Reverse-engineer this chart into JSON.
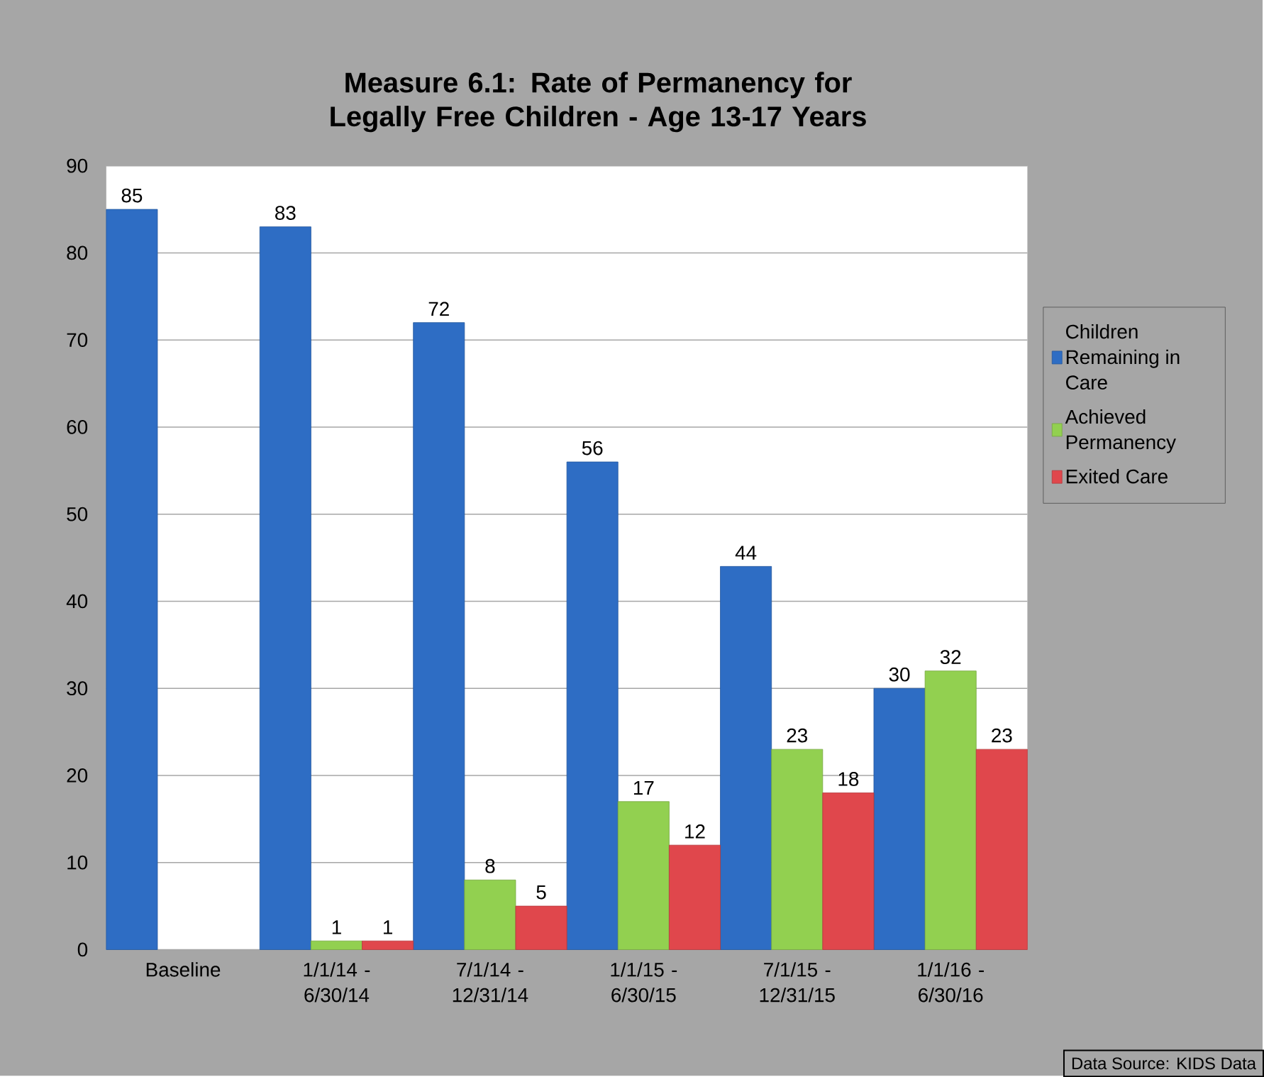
{
  "chart_data": {
    "type": "bar",
    "title": "Measure 6.1: Rate of Permanency for Legally Free Children  - Age 13-17 Years",
    "categories": [
      "Baseline",
      "1/1/14 - 6/30/14",
      "7/1/14 - 12/31/14",
      "1/1/15 - 6/30/15",
      "7/1/15 - 12/31/15",
      "1/1/16 - 6/30/16"
    ],
    "series": [
      {
        "name": "Children Remaining in Care",
        "color": "#2e6dc4",
        "values": [
          85,
          83,
          72,
          56,
          44,
          30
        ]
      },
      {
        "name": "Achieved Permanency",
        "color": "#92d050",
        "values": [
          null,
          1,
          8,
          17,
          23,
          32
        ]
      },
      {
        "name": "Exited Care",
        "color": "#e0474c",
        "values": [
          null,
          1,
          5,
          12,
          18,
          23
        ]
      }
    ],
    "ylim": [
      0,
      90
    ],
    "yticks": [
      0,
      10,
      20,
      30,
      40,
      50,
      60,
      70,
      80,
      90
    ],
    "grid": "y",
    "legend": "right",
    "data_labels": true,
    "annotations": [
      "Data Source: KIDS Data"
    ]
  }
}
